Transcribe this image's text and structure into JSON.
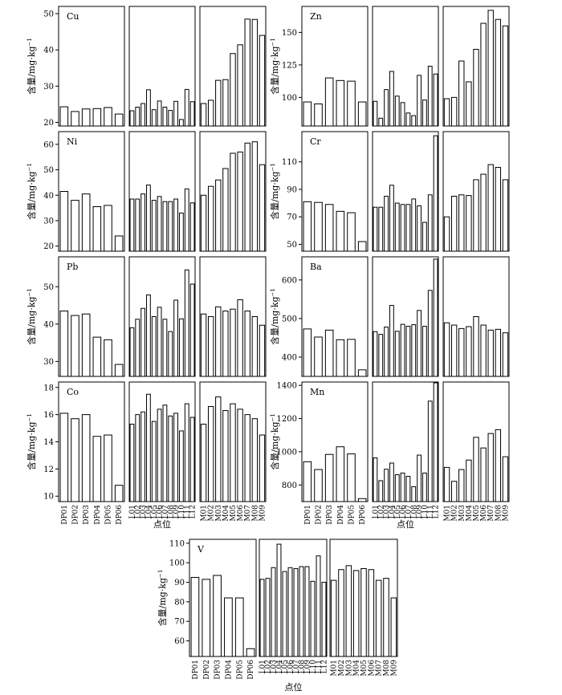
{
  "x_axis_label": "点位",
  "y_axis_label": "含量/mg·kg",
  "y_axis_label_sup": "−1",
  "chart_data": [
    {
      "type": "bar",
      "element": "Cu",
      "ylim": [
        19,
        52
      ],
      "yticks": [
        20,
        30,
        40,
        50
      ],
      "groups": [
        {
          "categories": [
            "DP01",
            "DP02",
            "DP03",
            "DP04",
            "DP05",
            "DP06"
          ],
          "values": [
            24.3,
            23.0,
            23.7,
            23.8,
            24.1,
            22.3
          ]
        },
        {
          "categories": [
            "L01",
            "L02",
            "L03",
            "L04",
            "L05",
            "L06",
            "L07",
            "L08",
            "L09",
            "L10",
            "L11",
            "L12"
          ],
          "values": [
            23.2,
            24.2,
            25.2,
            29.0,
            23.5,
            25.9,
            24.2,
            23.3,
            25.8,
            20.8,
            29.1,
            25.7
          ]
        },
        {
          "categories": [
            "M01",
            "M02",
            "M03",
            "M04",
            "M05",
            "M06",
            "M07",
            "M08",
            "M09"
          ],
          "values": [
            25.2,
            26.1,
            31.6,
            31.8,
            39.0,
            41.4,
            48.5,
            48.4,
            44.0
          ]
        }
      ]
    },
    {
      "type": "bar",
      "element": "Zn",
      "ylim": [
        78,
        170
      ],
      "yticks": [
        100,
        125,
        150
      ],
      "groups": [
        {
          "categories": [
            "DP01",
            "DP02",
            "DP03",
            "DP04",
            "DP05",
            "DP06"
          ],
          "values": [
            96.5,
            95.0,
            115.0,
            113.0,
            112.5,
            96.5
          ]
        },
        {
          "categories": [
            "L01",
            "L02",
            "L03",
            "L04",
            "L05",
            "L06",
            "L07",
            "L08",
            "L09",
            "L10",
            "L11",
            "L12"
          ],
          "values": [
            97,
            84,
            106,
            120,
            101,
            96,
            88,
            86,
            117,
            98,
            124,
            118
          ]
        },
        {
          "categories": [
            "M01",
            "M02",
            "M03",
            "M04",
            "M05",
            "M06",
            "M07",
            "M08",
            "M09"
          ],
          "values": [
            99,
            100,
            128,
            112,
            137,
            157,
            167,
            160,
            155
          ]
        }
      ]
    },
    {
      "type": "bar",
      "element": "Ni",
      "ylim": [
        18,
        65
      ],
      "yticks": [
        20,
        30,
        40,
        50,
        60
      ],
      "groups": [
        {
          "categories": [
            "DP01",
            "DP02",
            "DP03",
            "DP04",
            "DP05",
            "DP06"
          ],
          "values": [
            41.5,
            38.0,
            40.5,
            35.5,
            36.0,
            24.0
          ]
        },
        {
          "categories": [
            "L01",
            "L02",
            "L03",
            "L04",
            "L05",
            "L06",
            "L07",
            "L08",
            "L09",
            "L10",
            "L11",
            "L12"
          ],
          "values": [
            38.5,
            38.5,
            40.5,
            44.0,
            38.0,
            39.5,
            37.5,
            37.5,
            38.5,
            33.0,
            42.5,
            37.0
          ]
        },
        {
          "categories": [
            "M01",
            "M02",
            "M03",
            "M04",
            "M05",
            "M06",
            "M07",
            "M08",
            "M09"
          ],
          "values": [
            40.0,
            43.5,
            46.0,
            50.5,
            56.5,
            57.0,
            60.5,
            61.0,
            52.0
          ]
        }
      ]
    },
    {
      "type": "bar",
      "element": "Cr",
      "ylim": [
        45,
        132
      ],
      "yticks": [
        50,
        70,
        90,
        110
      ],
      "groups": [
        {
          "categories": [
            "DP01",
            "DP02",
            "DP03",
            "DP04",
            "DP05",
            "DP06"
          ],
          "values": [
            81,
            80.5,
            79,
            74,
            73,
            52
          ]
        },
        {
          "categories": [
            "L01",
            "L02",
            "L03",
            "L04",
            "L05",
            "L06",
            "L07",
            "L08",
            "L09",
            "L10",
            "L11",
            "L12"
          ],
          "values": [
            77,
            77,
            85,
            93,
            80,
            79,
            79,
            83,
            78,
            66,
            86,
            129
          ]
        },
        {
          "categories": [
            "M01",
            "M02",
            "M03",
            "M04",
            "M05",
            "M06",
            "M07",
            "M08",
            "M09"
          ],
          "values": [
            70,
            85,
            86,
            85.5,
            97,
            101,
            108,
            106,
            97
          ]
        }
      ]
    },
    {
      "type": "bar",
      "element": "Pb",
      "ylim": [
        26,
        58
      ],
      "yticks": [
        30,
        40,
        50
      ],
      "groups": [
        {
          "categories": [
            "DP01",
            "DP02",
            "DP03",
            "DP04",
            "DP05",
            "DP06"
          ],
          "values": [
            43.5,
            42.3,
            42.7,
            36.5,
            35.8,
            29.2
          ]
        },
        {
          "categories": [
            "L01",
            "L02",
            "L03",
            "L04",
            "L05",
            "L06",
            "L07",
            "L08",
            "L09",
            "L10",
            "L11",
            "L12"
          ],
          "values": [
            39.0,
            41.3,
            44.2,
            47.8,
            42.0,
            44.5,
            41.3,
            38.0,
            46.4,
            41.4,
            54.5,
            50.7
          ]
        },
        {
          "categories": [
            "M01",
            "M02",
            "M03",
            "M04",
            "M05",
            "M06",
            "M07",
            "M08",
            "M09"
          ],
          "values": [
            42.7,
            42.0,
            44.6,
            43.5,
            44.0,
            46.5,
            43.5,
            42.0,
            39.7
          ]
        }
      ]
    },
    {
      "type": "bar",
      "element": "Ba",
      "ylim": [
        350,
        660
      ],
      "yticks": [
        400,
        500,
        600
      ],
      "groups": [
        {
          "categories": [
            "DP01",
            "DP02",
            "DP03",
            "DP04",
            "DP05",
            "DP06"
          ],
          "values": [
            473,
            452,
            470,
            445,
            446,
            367
          ]
        },
        {
          "categories": [
            "L01",
            "L02",
            "L03",
            "L04",
            "L05",
            "L06",
            "L07",
            "L08",
            "L09",
            "L10",
            "L11",
            "L12"
          ],
          "values": [
            466,
            459,
            478,
            534,
            467,
            485,
            480,
            484,
            521,
            480,
            573,
            654
          ]
        },
        {
          "categories": [
            "M01",
            "M02",
            "M03",
            "M04",
            "M05",
            "M06",
            "M07",
            "M08",
            "M09"
          ],
          "values": [
            489,
            483,
            474,
            479,
            505,
            483,
            470,
            472,
            463
          ]
        }
      ]
    },
    {
      "type": "bar",
      "element": "Co",
      "ylim": [
        9.6,
        18.4
      ],
      "yticks": [
        10,
        12,
        14,
        16,
        18
      ],
      "groups": [
        {
          "categories": [
            "DP01",
            "DP02",
            "DP03",
            "DP04",
            "DP05",
            "DP06"
          ],
          "values": [
            16.1,
            15.7,
            16.0,
            14.4,
            14.5,
            10.8
          ]
        },
        {
          "categories": [
            "L01",
            "L02",
            "L03",
            "L04",
            "L05",
            "L06",
            "L07",
            "L08",
            "L09",
            "L10",
            "L11",
            "L12"
          ],
          "values": [
            15.3,
            16.0,
            16.2,
            17.5,
            15.5,
            16.4,
            16.7,
            15.9,
            16.1,
            14.8,
            16.8,
            15.8
          ]
        },
        {
          "categories": [
            "M01",
            "M02",
            "M03",
            "M04",
            "M05",
            "M06",
            "M07",
            "M08",
            "M09"
          ],
          "values": [
            15.3,
            16.6,
            17.3,
            16.3,
            16.8,
            16.4,
            16.0,
            15.7,
            14.5
          ]
        }
      ]
    },
    {
      "type": "bar",
      "element": "Mn",
      "ylim": [
        700,
        1420
      ],
      "yticks": [
        800,
        1000,
        1200,
        1400
      ],
      "groups": [
        {
          "categories": [
            "DP01",
            "DP02",
            "DP03",
            "DP04",
            "DP05",
            "DP06"
          ],
          "values": [
            940,
            893,
            984,
            1030,
            987,
            718
          ]
        },
        {
          "categories": [
            "L01",
            "L02",
            "L03",
            "L04",
            "L05",
            "L06",
            "L07",
            "L08",
            "L09",
            "L10",
            "L11",
            "L12"
          ],
          "values": [
            963,
            826,
            895,
            932,
            862,
            872,
            852,
            790,
            980,
            872,
            1305,
            1415
          ]
        },
        {
          "categories": [
            "M01",
            "M02",
            "M03",
            "M04",
            "M05",
            "M06",
            "M07",
            "M08",
            "M09"
          ],
          "values": [
            906,
            822,
            893,
            950,
            1087,
            1023,
            1110,
            1133,
            970
          ]
        }
      ]
    },
    {
      "type": "bar",
      "element": "V",
      "ylim": [
        52,
        112
      ],
      "yticks": [
        60,
        70,
        80,
        90,
        100,
        110
      ],
      "groups": [
        {
          "categories": [
            "DP01",
            "DP02",
            "DP03",
            "DP04",
            "DP05",
            "DP06"
          ],
          "values": [
            92.5,
            91.5,
            93.5,
            82.0,
            82.0,
            56.0
          ]
        },
        {
          "categories": [
            "L01",
            "L02",
            "L03",
            "L04",
            "L05",
            "L06",
            "L07",
            "L08",
            "L09",
            "L10",
            "L11",
            "L12"
          ],
          "values": [
            91.5,
            92.0,
            97.5,
            109.5,
            95.5,
            97.5,
            97.0,
            98.0,
            98.0,
            90.5,
            103.5,
            90.0
          ]
        },
        {
          "categories": [
            "M01",
            "M02",
            "M03",
            "M04",
            "M05",
            "M06",
            "M07",
            "M08",
            "M09"
          ],
          "values": [
            91.0,
            96.5,
            98.5,
            96.0,
            97.0,
            96.5,
            91.0,
            92.0,
            82.0
          ]
        }
      ]
    }
  ]
}
